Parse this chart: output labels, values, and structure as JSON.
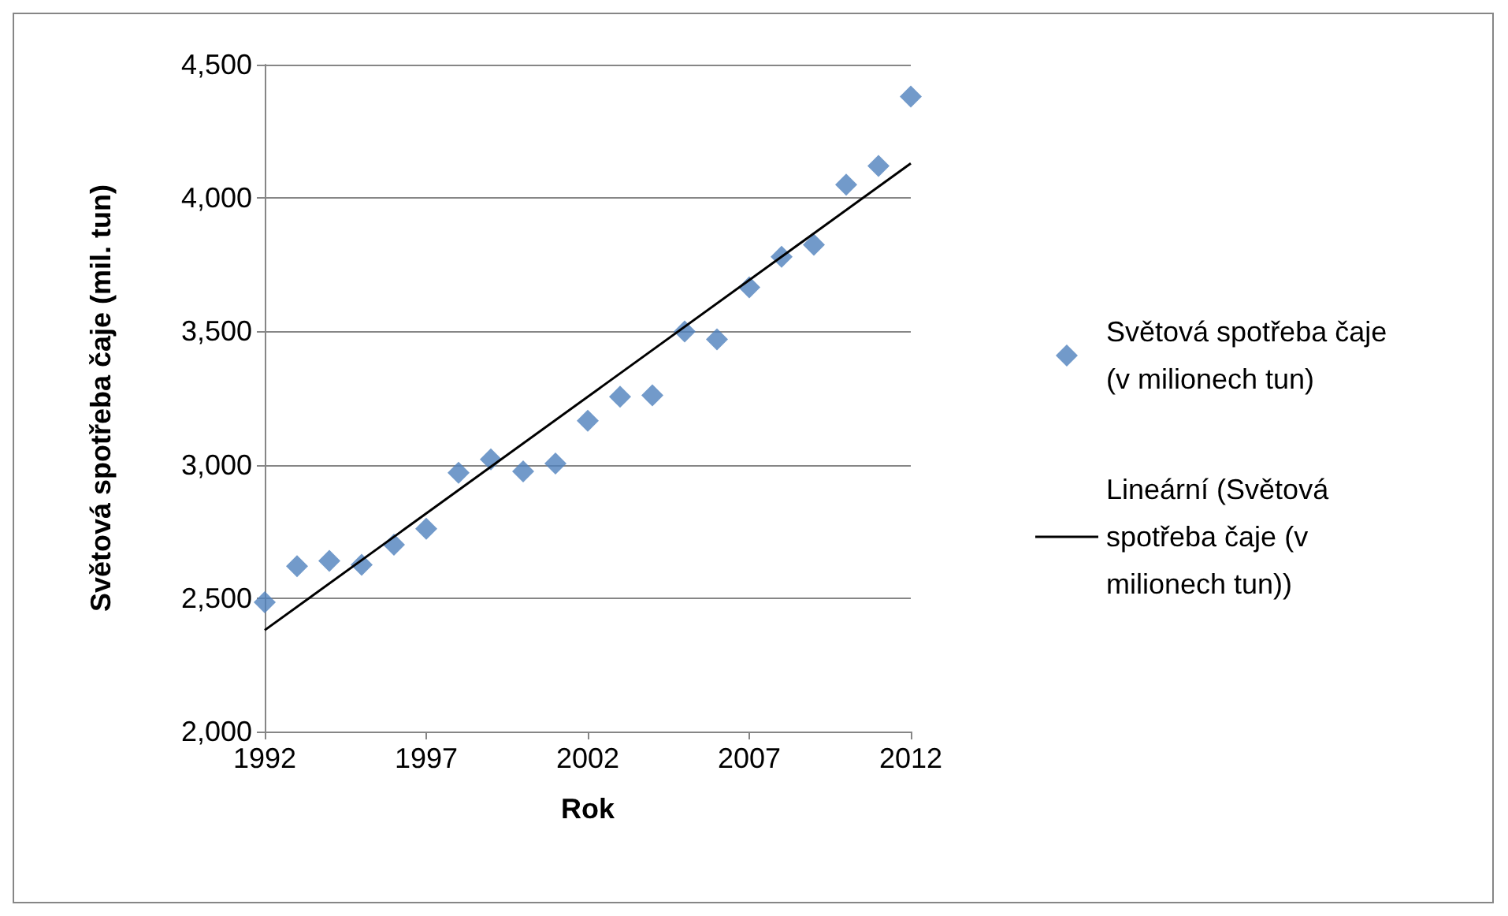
{
  "chart_data": {
    "type": "scatter",
    "xlabel": "Rok",
    "ylabel": "Světová spotřeba čaje (mil. tun)",
    "series": [
      {
        "name": "Světová spotřeba čaje (v milionech tun)",
        "color": "#4f81bd",
        "marker": "diamond",
        "x": [
          1992,
          1993,
          1994,
          1995,
          1996,
          1997,
          1998,
          1999,
          2000,
          2001,
          2002,
          2003,
          2004,
          2005,
          2006,
          2007,
          2008,
          2009,
          2010,
          2011,
          2012
        ],
        "values": [
          2485,
          2620,
          2640,
          2625,
          2700,
          2760,
          2970,
          3020,
          2975,
          3005,
          3165,
          3255,
          3260,
          3500,
          3470,
          3665,
          3780,
          3825,
          4050,
          4120,
          4380
        ]
      },
      {
        "name": "Lineární (Světová spotřeba čaje (v milionech tun))",
        "type": "line",
        "color": "#000000",
        "marker": "none",
        "line_style": "solid",
        "x": [
          1992,
          2012
        ],
        "values": [
          2380,
          4130
        ]
      }
    ],
    "xlim": [
      1992,
      2012
    ],
    "xticks": [
      1992,
      1997,
      2002,
      2007,
      2012
    ],
    "ylim": [
      2000,
      4500
    ],
    "yticks": [
      {
        "value": 2000,
        "label": "2,000"
      },
      {
        "value": 2500,
        "label": "2,500"
      },
      {
        "value": 3000,
        "label": "3,000"
      },
      {
        "value": 3500,
        "label": "3,500"
      },
      {
        "value": 4000,
        "label": "4,000"
      },
      {
        "value": 4500,
        "label": "4,500"
      }
    ],
    "grid": "y",
    "legend": "right"
  }
}
